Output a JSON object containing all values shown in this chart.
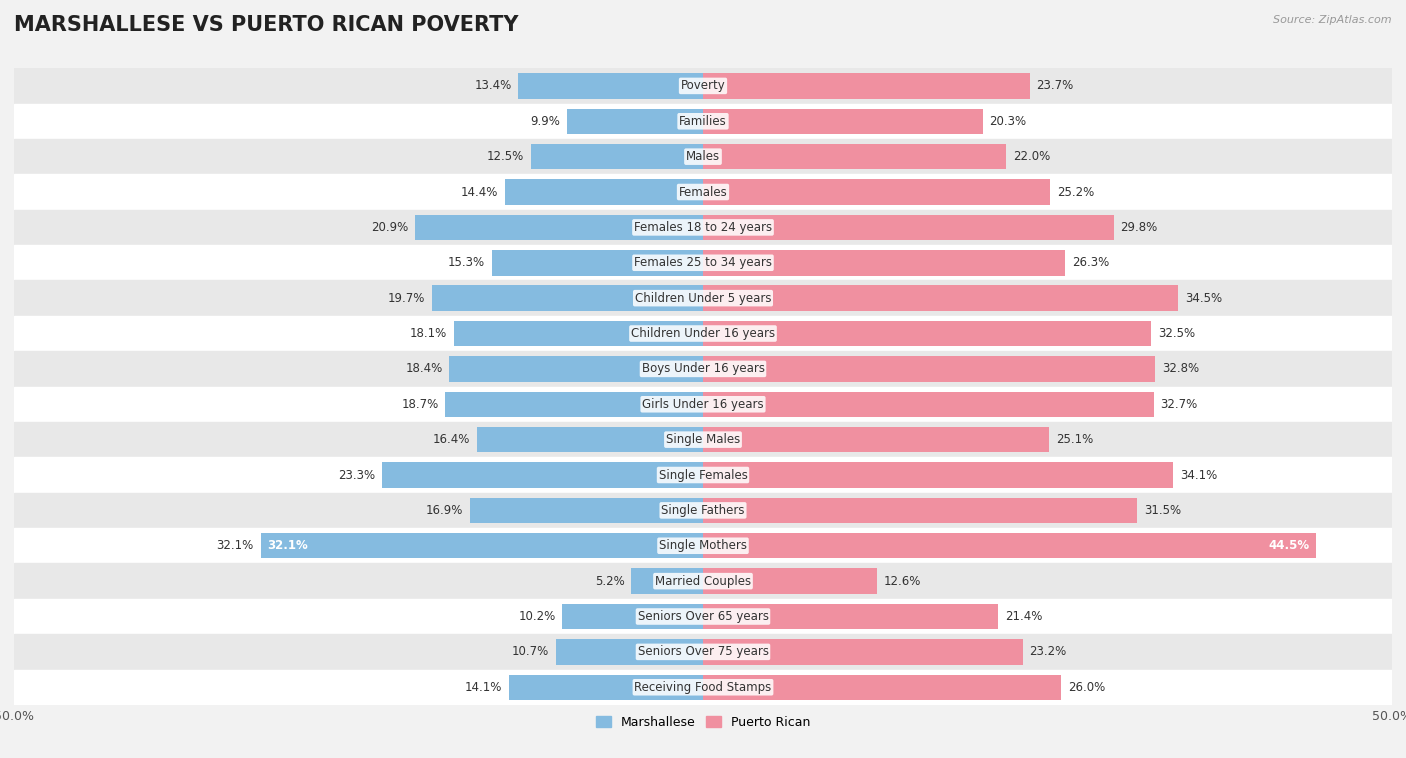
{
  "title": "MARSHALLESE VS PUERTO RICAN POVERTY",
  "source": "Source: ZipAtlas.com",
  "categories": [
    "Poverty",
    "Families",
    "Males",
    "Females",
    "Females 18 to 24 years",
    "Females 25 to 34 years",
    "Children Under 5 years",
    "Children Under 16 years",
    "Boys Under 16 years",
    "Girls Under 16 years",
    "Single Males",
    "Single Females",
    "Single Fathers",
    "Single Mothers",
    "Married Couples",
    "Seniors Over 65 years",
    "Seniors Over 75 years",
    "Receiving Food Stamps"
  ],
  "marshallese": [
    13.4,
    9.9,
    12.5,
    14.4,
    20.9,
    15.3,
    19.7,
    18.1,
    18.4,
    18.7,
    16.4,
    23.3,
    16.9,
    32.1,
    5.2,
    10.2,
    10.7,
    14.1
  ],
  "puerto_rican": [
    23.7,
    20.3,
    22.0,
    25.2,
    29.8,
    26.3,
    34.5,
    32.5,
    32.8,
    32.7,
    25.1,
    34.1,
    31.5,
    44.5,
    12.6,
    21.4,
    23.2,
    26.0
  ],
  "marshallese_color": "#85BBE0",
  "puerto_rican_color": "#F090A0",
  "marshallese_dark_color": "#4A90C4",
  "puerto_rican_dark_color": "#E85070",
  "bg_color": "#f2f2f2",
  "row_bg_even": "#ffffff",
  "row_bg_odd": "#e8e8e8",
  "axis_limit": 50.0,
  "legend_marshallese": "Marshallese",
  "legend_puerto_rican": "Puerto Rican",
  "title_fontsize": 15,
  "label_fontsize": 8.5,
  "value_fontsize": 8.5
}
